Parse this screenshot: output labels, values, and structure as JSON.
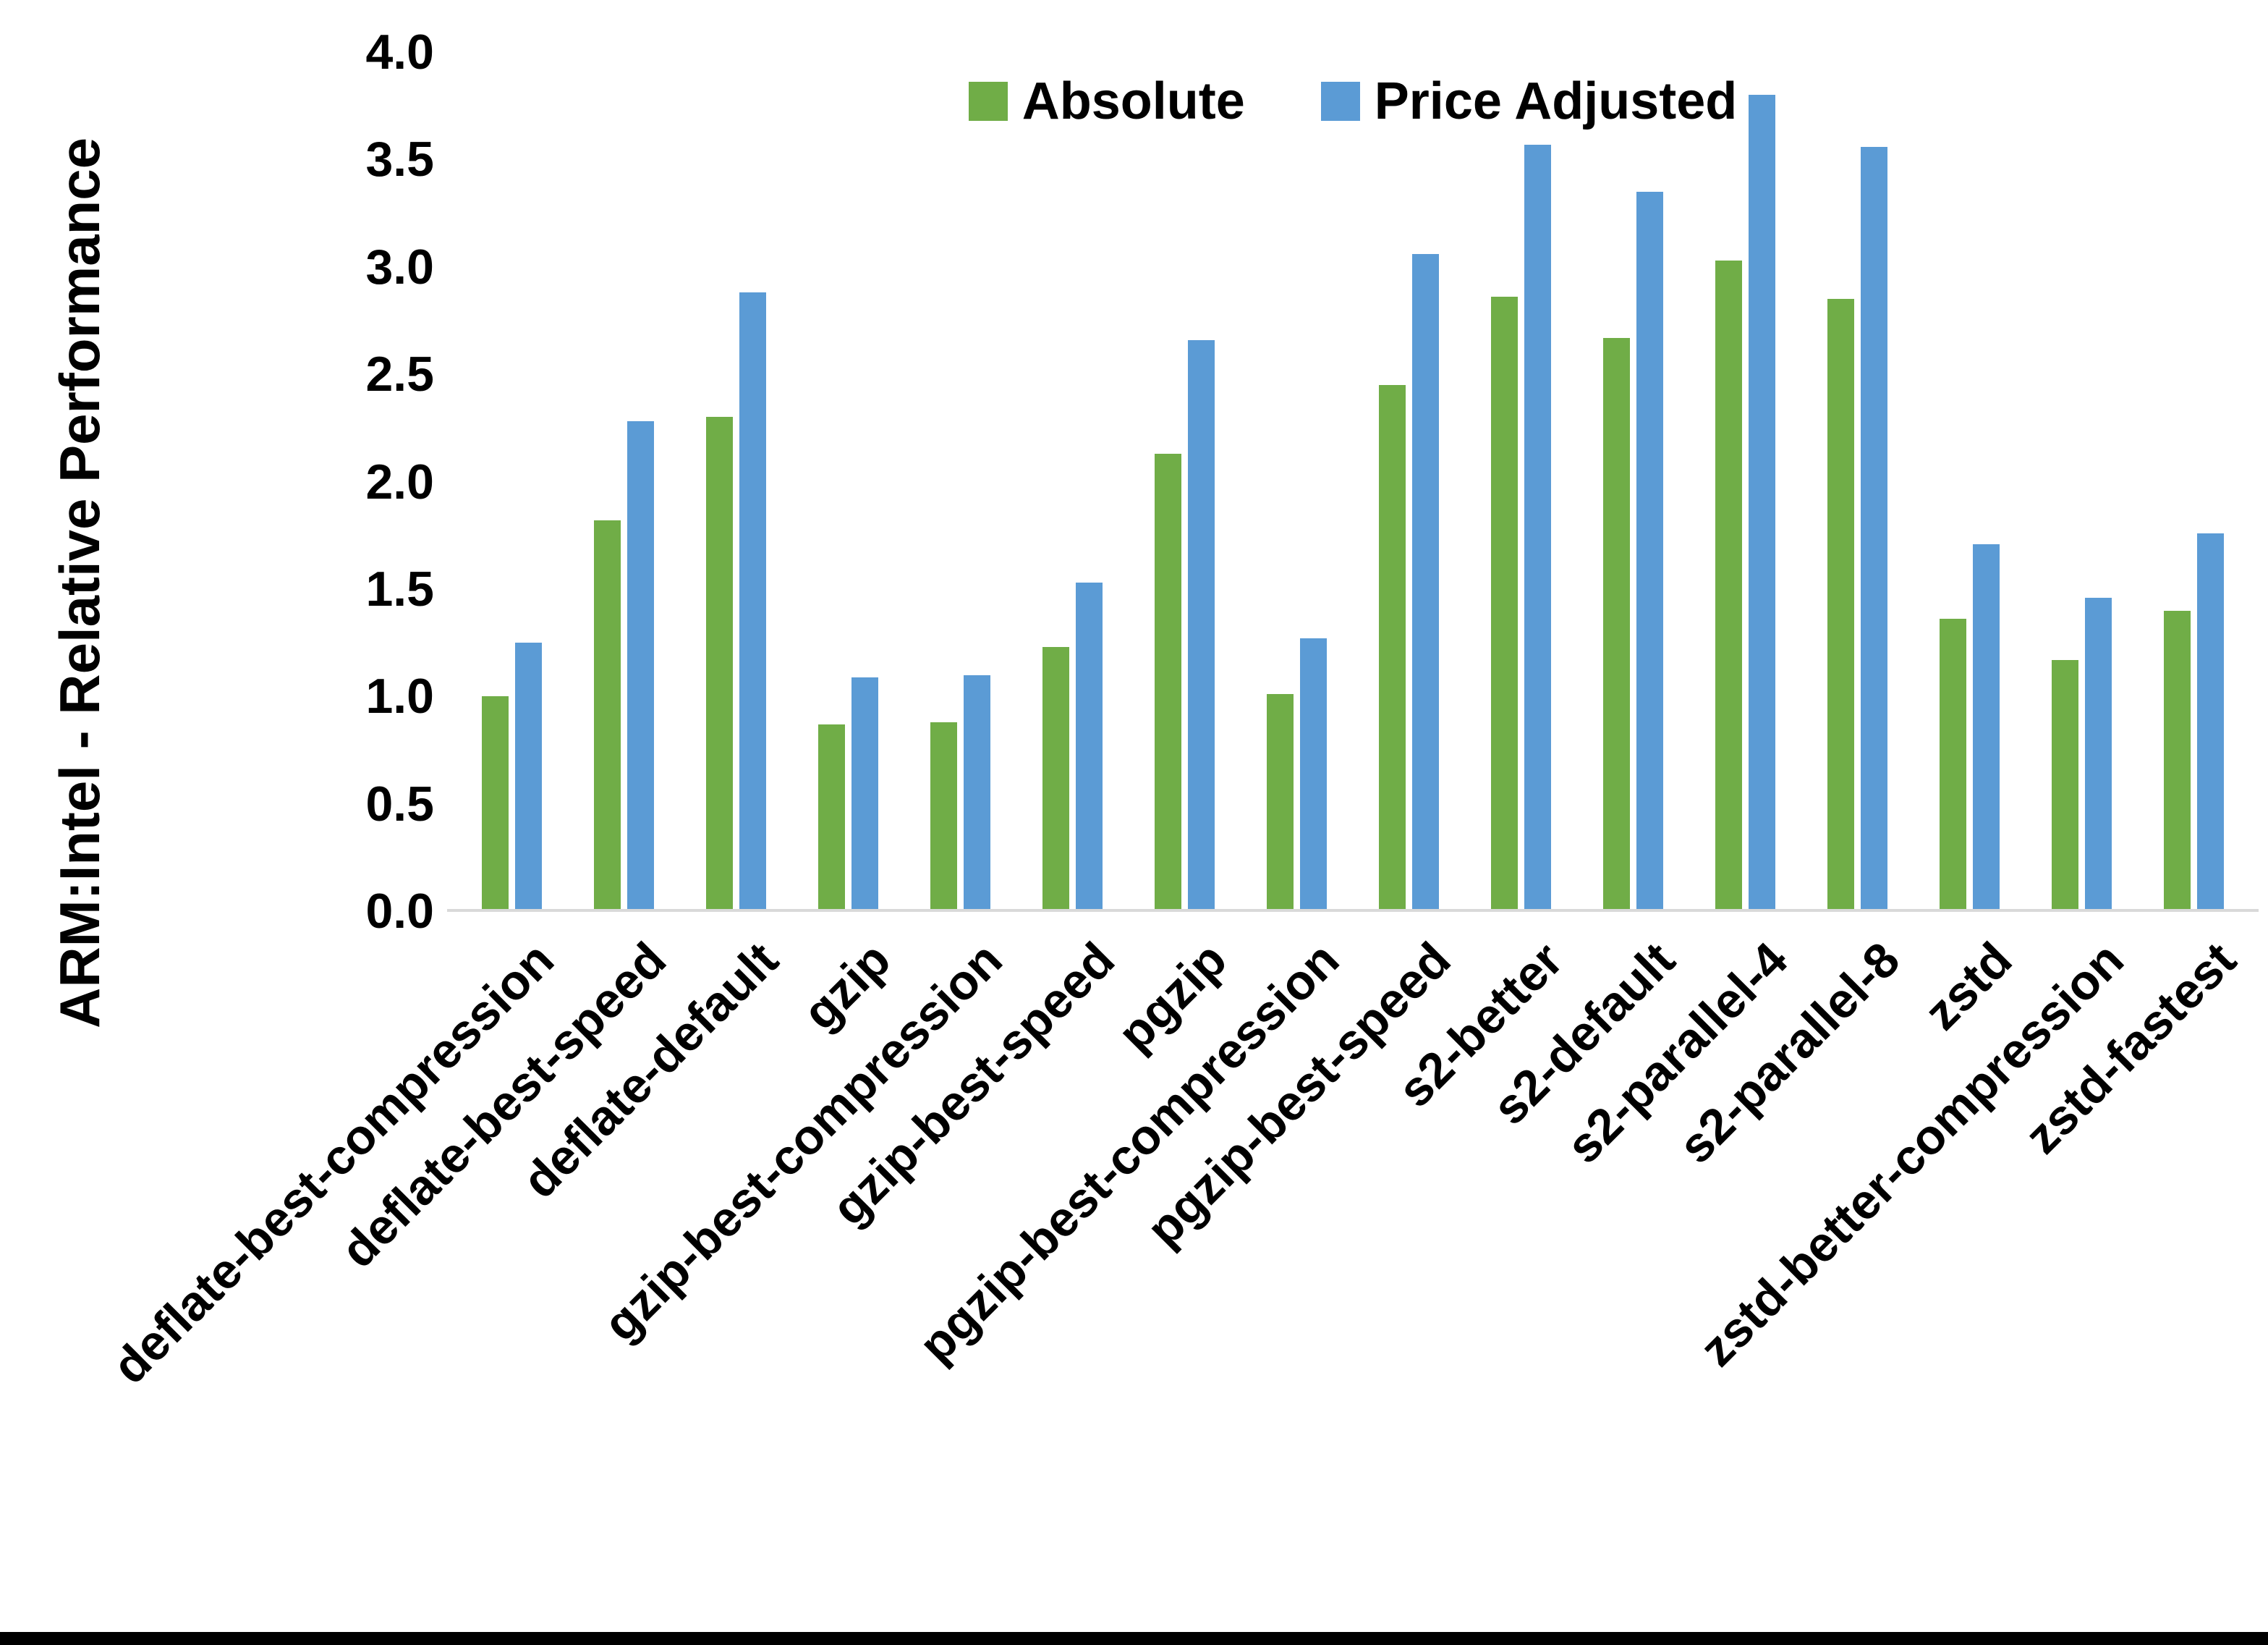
{
  "chart_data": {
    "type": "bar",
    "title": "",
    "ylabel": "ARM:Intel - Relative Performance",
    "xlabel": "",
    "ylim": [
      0,
      4
    ],
    "yticks": [
      0,
      0.5,
      1,
      1.5,
      2,
      2.5,
      3,
      3.5,
      4
    ],
    "grid": false,
    "legend_position": "top-center",
    "axis_line_color": "#d9d9d9",
    "background_color": "#ffffff",
    "bottom_border_color": "#000000",
    "text_color": "#000000",
    "categories": [
      "deflate-best-compression",
      "deflate-best-speed",
      "deflate-default",
      "gzip",
      "gzip-best-compression",
      "gzip-best-speed",
      "pgzip",
      "pgzip-best-compression",
      "pgzip-best-speed",
      "s2-better",
      "s2-default",
      "s2-parallel-4",
      "s2-parallel-8",
      "zstd",
      "zstd-better-compression",
      "zstd-fastest"
    ],
    "series": [
      {
        "name": "Absolute",
        "color": "#70ad47",
        "values": [
          1.0,
          1.82,
          2.3,
          0.87,
          0.88,
          1.23,
          2.13,
          1.01,
          2.45,
          2.86,
          2.67,
          3.03,
          2.85,
          1.36,
          1.17,
          1.4
        ]
      },
      {
        "name": "Price Adjusted",
        "color": "#5b9bd5",
        "values": [
          1.25,
          2.28,
          2.88,
          1.09,
          1.1,
          1.53,
          2.66,
          1.27,
          3.06,
          3.57,
          3.35,
          3.8,
          3.56,
          1.71,
          1.46,
          1.76
        ]
      }
    ]
  }
}
